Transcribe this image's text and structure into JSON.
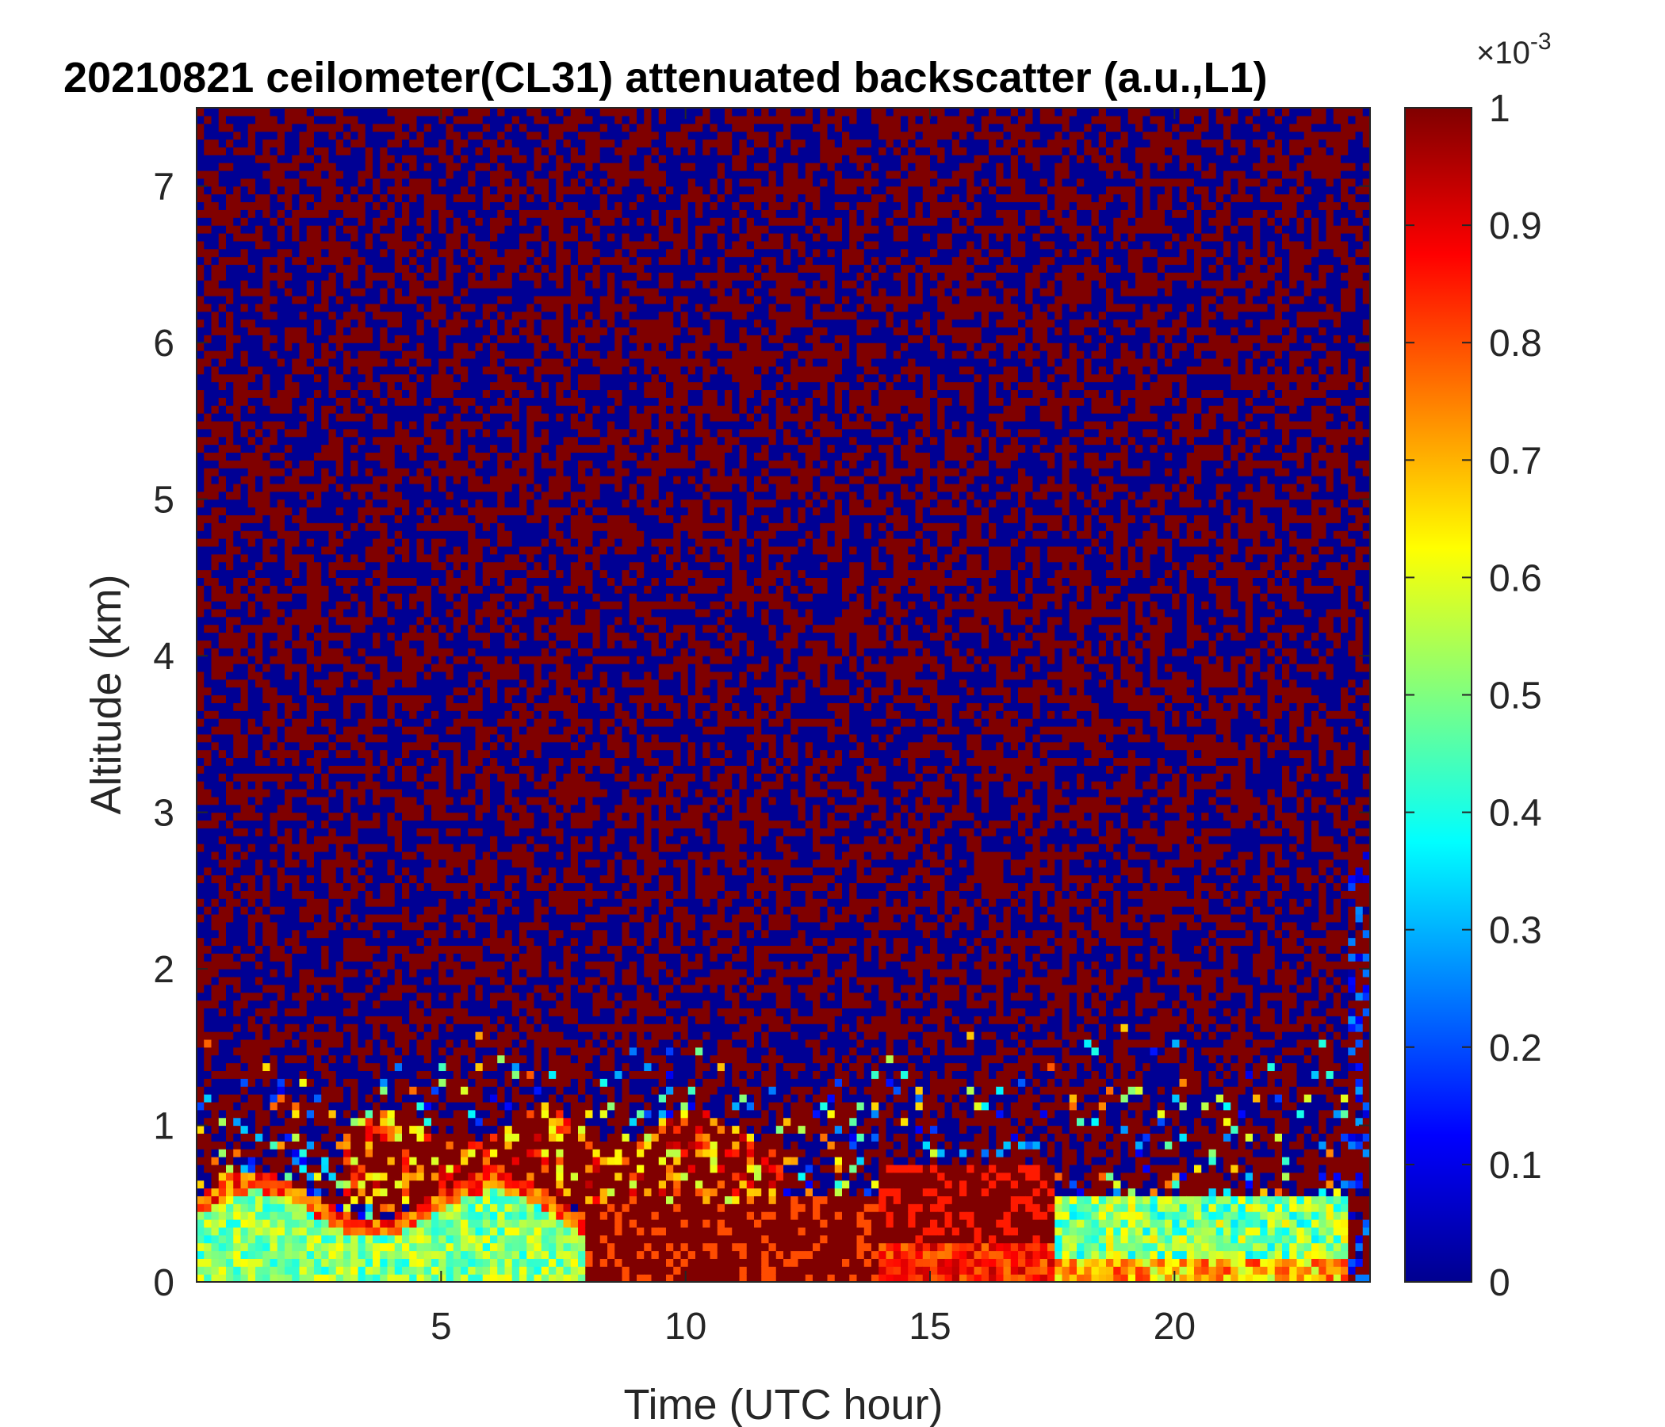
{
  "chart_data": {
    "type": "heatmap",
    "title": "20210821 ceilometer(CL31) attenuated backscatter (a.u.,L1)",
    "xlabel": "Time (UTC hour)",
    "ylabel": "Altitude (km)",
    "xlim": [
      0,
      24
    ],
    "ylim": [
      0,
      7.5
    ],
    "x_ticks": [
      5,
      10,
      15,
      20
    ],
    "y_ticks": [
      0,
      1,
      2,
      3,
      4,
      5,
      6,
      7
    ],
    "colorbar": {
      "colormap": "jet",
      "clim": [
        0,
        1
      ],
      "ticks": [
        0,
        0.1,
        0.2,
        0.3,
        0.4,
        0.5,
        0.6,
        0.7,
        0.8,
        0.9,
        1
      ],
      "tick_labels": [
        "0",
        "0.1",
        "0.2",
        "0.3",
        "0.4",
        "0.5",
        "0.6",
        "0.7",
        "0.8",
        "0.9",
        "1"
      ],
      "exponent_base": "×10",
      "exponent_power": "-3"
    },
    "grid": false,
    "features": [
      {
        "name": "boundary-layer-aerosol",
        "x_range": [
          0,
          8
        ],
        "altitude_km": [
          0,
          0.6
        ],
        "value": 0.45
      },
      {
        "name": "elevated-aerosol-layer",
        "x_range": [
          3,
          12
        ],
        "altitude_km": [
          0.5,
          1.1
        ],
        "value": 1.0
      },
      {
        "name": "afternoon-mixed-layer",
        "x_range": [
          14,
          17.5
        ],
        "altitude_km": [
          0,
          0.8
        ],
        "value": 0.85
      },
      {
        "name": "evening-residual-layer",
        "x_range": [
          17.5,
          23.5
        ],
        "altitude_km": [
          0,
          0.6
        ],
        "value": 0.5
      },
      {
        "name": "noise-background",
        "altitude_km": [
          1.5,
          7.5
        ],
        "value": "mixed 0 / 1"
      }
    ]
  }
}
